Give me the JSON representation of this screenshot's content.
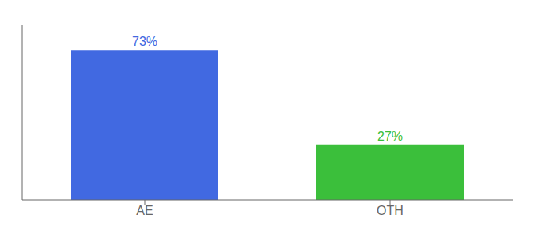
{
  "chart_data": {
    "type": "bar",
    "categories": [
      "AE",
      "OTH"
    ],
    "values": [
      73,
      27
    ],
    "value_labels": [
      "73%",
      "27%"
    ],
    "colors": [
      "#4169e1",
      "#3bbf3b"
    ],
    "ylim": [
      0,
      85
    ],
    "data_labels": true,
    "tick_labels": "x"
  }
}
